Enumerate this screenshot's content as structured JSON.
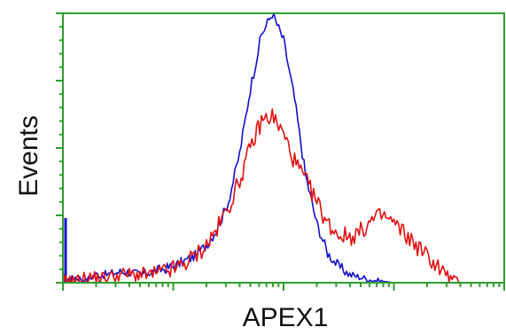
{
  "chart_data": {
    "type": "line",
    "title": "",
    "xlabel": "APEX1",
    "ylabel": "Events",
    "x_scale": "log",
    "xlim": [
      1,
      10000
    ],
    "ylim": [
      0,
      100
    ],
    "grid": false,
    "legend": "none",
    "axis_color": "#2e9e2e",
    "series": [
      {
        "color": "#1010d0",
        "x": [
          1,
          1.1,
          1.3,
          1.6,
          2,
          2.5,
          3.2,
          4,
          5,
          6.3,
          8,
          10,
          12.6,
          15.8,
          20,
          25,
          31.6,
          40,
          50,
          63,
          79,
          100,
          126,
          158,
          200,
          251,
          316,
          398,
          501,
          631,
          794,
          1000,
          1259,
          1585,
          1995,
          2512,
          3162,
          3981,
          5012,
          6310,
          10000
        ],
        "y": [
          2,
          1,
          2,
          1,
          3,
          3,
          4,
          4,
          3,
          4,
          5,
          6,
          8,
          10,
          14,
          20,
          30,
          48,
          72,
          92,
          100,
          90,
          68,
          40,
          22,
          11,
          6,
          3,
          2,
          1,
          0.5,
          0,
          0,
          0,
          0,
          0,
          0,
          0,
          0,
          0,
          0
        ]
      },
      {
        "color": "#e01010",
        "x": [
          1,
          1.1,
          1.3,
          1.6,
          2,
          2.5,
          3.2,
          4,
          5,
          6.3,
          8,
          10,
          12.6,
          15.8,
          20,
          25,
          31.6,
          40,
          50,
          63,
          79,
          100,
          126,
          158,
          200,
          251,
          316,
          398,
          501,
          631,
          794,
          1000,
          1259,
          1585,
          1995,
          2512,
          3162,
          3981,
          5012,
          6310,
          10000
        ],
        "y": [
          1,
          1,
          1,
          2,
          2,
          2,
          3,
          3,
          3,
          3,
          4,
          5,
          7,
          10,
          14,
          20,
          28,
          38,
          50,
          60,
          62,
          55,
          45,
          38,
          30,
          22,
          18,
          17,
          19,
          23,
          25,
          22,
          18,
          14,
          10,
          6,
          2,
          0,
          0,
          0,
          0
        ]
      }
    ]
  }
}
